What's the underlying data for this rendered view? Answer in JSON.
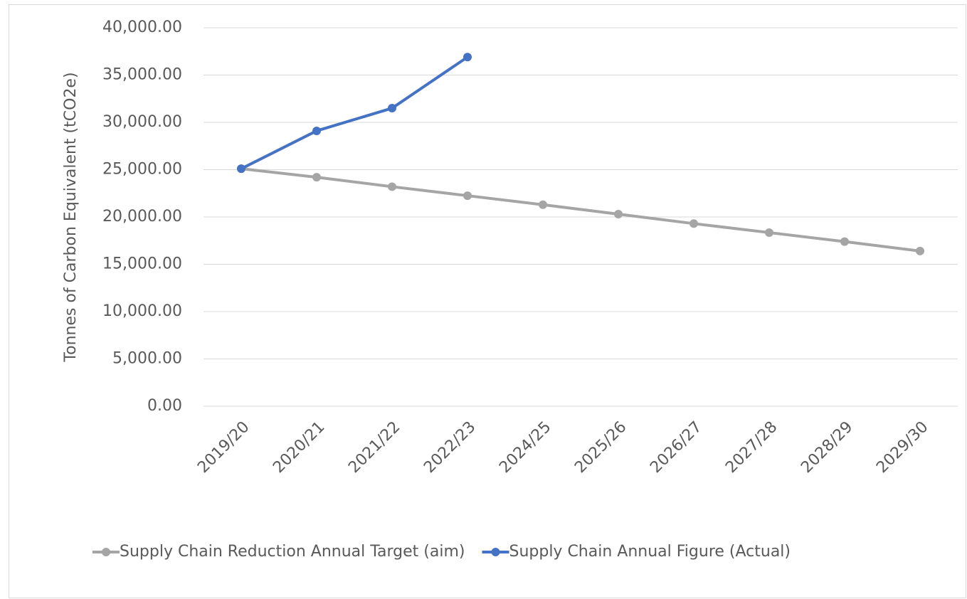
{
  "chart_data": {
    "type": "line",
    "ylabel": "Tonnes of Carbon Equivalent (tCO2e)",
    "categories": [
      "2019/20",
      "2020/21",
      "2021/22",
      "2022/23",
      "2024/25",
      "2025/26",
      "2026/27",
      "2027/28",
      "2028/29",
      "2029/30"
    ],
    "series": [
      {
        "name": "Supply Chain Reduction Annual Target (aim)",
        "color": "#a5a5a5",
        "values": [
          25100,
          24200,
          23200,
          22250,
          21300,
          20300,
          19300,
          18350,
          17400,
          16400
        ]
      },
      {
        "name": "Supply Chain Annual Figure (Actual)",
        "color": "#4472c4",
        "values": [
          25100,
          29100,
          31500,
          36900,
          null,
          null,
          null,
          null,
          null,
          null
        ]
      }
    ],
    "ylim": [
      0,
      40000
    ],
    "yticks": [
      {
        "value": 0,
        "label": "0.00"
      },
      {
        "value": 5000,
        "label": "5,000.00"
      },
      {
        "value": 10000,
        "label": "10,000.00"
      },
      {
        "value": 15000,
        "label": "15,000.00"
      },
      {
        "value": 20000,
        "label": "20,000.00"
      },
      {
        "value": 25000,
        "label": "25,000.00"
      },
      {
        "value": 30000,
        "label": "30,000.00"
      },
      {
        "value": 35000,
        "label": "35,000.00"
      },
      {
        "value": 40000,
        "label": "40,000.00"
      }
    ],
    "grid": true,
    "legend": "bottom"
  }
}
